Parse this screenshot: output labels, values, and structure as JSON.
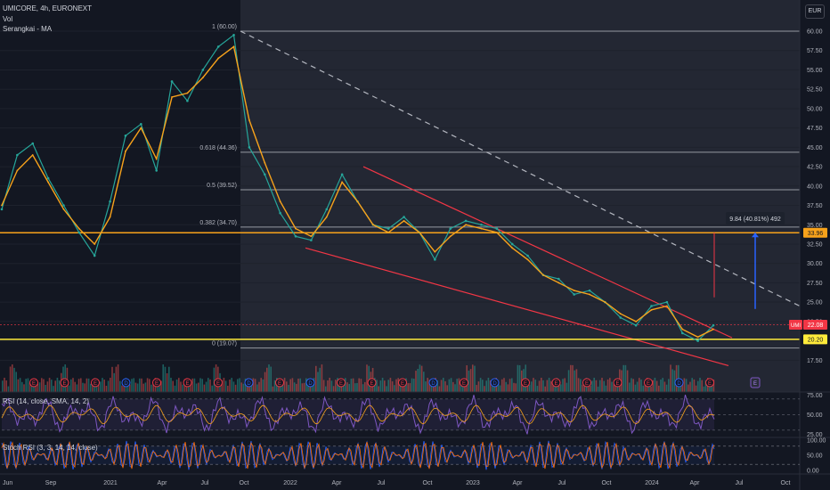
{
  "header": {
    "title": "UMICORE, 4h, EURONEXT",
    "vol_label": "Vol",
    "ma_label": "Serangkai - MA",
    "currency_button": "EUR"
  },
  "price_scale": {
    "ticks": [
      "60.00",
      "57.50",
      "55.00",
      "52.50",
      "50.00",
      "47.50",
      "45.00",
      "42.50",
      "40.00",
      "37.50",
      "35.00",
      "32.50",
      "30.00",
      "27.50",
      "25.00",
      "22.50",
      "20.00",
      "17.50"
    ],
    "labels": [
      {
        "id": "resistance",
        "text": "33.96",
        "color": "#f7a21b"
      },
      {
        "id": "last",
        "symbol": "UMI",
        "text": "22.08",
        "color": "#f23645"
      },
      {
        "id": "support",
        "text": "20.20",
        "color": "#ffeb3b"
      }
    ]
  },
  "rsi_scale": {
    "ticks": [
      "75.00",
      "50.00",
      "25.00"
    ]
  },
  "stoch_scale": {
    "ticks": [
      "100.00",
      "50.00",
      "0.00"
    ]
  },
  "time_axis": {
    "ticks": [
      "Jun",
      "Sep",
      "2021",
      "Apr",
      "Jul",
      "Oct",
      "2022",
      "Apr",
      "Jul",
      "Oct",
      "2023",
      "Apr",
      "Jul",
      "Oct",
      "2024",
      "Apr",
      "Jul",
      "Oct"
    ]
  },
  "fibonacci": [
    {
      "level": "1",
      "price": 60.0,
      "label": "1 (60.00)"
    },
    {
      "level": "0.618",
      "price": 44.36,
      "label": "0.618 (44.36)"
    },
    {
      "level": "0.5",
      "price": 39.52,
      "label": "0.5 (39.52)"
    },
    {
      "level": "0.382",
      "price": 34.7,
      "label": "0.382 (34.70)"
    },
    {
      "level": "0",
      "price": 19.07,
      "label": "0 (19.07)"
    }
  ],
  "measure": {
    "label": "9.84 (40.81%) 492",
    "from": 24.12,
    "to": 33.96
  },
  "levels": {
    "resistance": 33.96,
    "support": 20.2,
    "last": 22.08
  },
  "indicators": {
    "rsi_label": "RSI (14, close, SMA, 14, 2)",
    "stoch_label": "Stoch RSI (3, 3, 14, 14, close)"
  },
  "event_markers": [
    "E",
    "E",
    "E",
    "D",
    "E",
    "E",
    "E",
    "D",
    "E",
    "D",
    "E",
    "E",
    "E",
    "D",
    "E",
    "D",
    "E",
    "E",
    "E",
    "E",
    "E",
    "D",
    "E"
  ],
  "chart_data": {
    "type": "line",
    "title": "UMICORE, 4h, EURONEXT",
    "ylim": [
      17.0,
      62.5
    ],
    "x_ticks": [
      "Jun",
      "Sep",
      "2021",
      "Apr",
      "Jul",
      "Oct",
      "2022",
      "Apr",
      "Jul",
      "Oct",
      "2023",
      "Apr",
      "Jul",
      "Oct",
      "2024",
      "Apr",
      "Jul",
      "Oct"
    ],
    "x": [
      "2020-06",
      "2020-07",
      "2020-08",
      "2020-09",
      "2020-10",
      "2020-11",
      "2020-12",
      "2021-01",
      "2021-02",
      "2021-03",
      "2021-04",
      "2021-05",
      "2021-06",
      "2021-07",
      "2021-08",
      "2021-09",
      "2021-10",
      "2021-11",
      "2021-12",
      "2022-01",
      "2022-02",
      "2022-03",
      "2022-04",
      "2022-05",
      "2022-06",
      "2022-07",
      "2022-08",
      "2022-09",
      "2022-10",
      "2022-11",
      "2022-12",
      "2023-01",
      "2023-02",
      "2023-03",
      "2023-04",
      "2023-05",
      "2023-06",
      "2023-07",
      "2023-08",
      "2023-09",
      "2023-10",
      "2023-11",
      "2023-12",
      "2024-01",
      "2024-02",
      "2024-03",
      "2024-04"
    ],
    "series": [
      {
        "name": "UMICORE",
        "color": "#26a69a",
        "values": [
          37.0,
          44.0,
          45.5,
          41.0,
          37.5,
          34.0,
          31.0,
          38.0,
          46.5,
          48.0,
          42.0,
          53.5,
          51.0,
          55.0,
          58.0,
          59.5,
          45.0,
          41.5,
          36.5,
          33.5,
          33.0,
          37.0,
          41.5,
          38.0,
          35.0,
          34.5,
          36.0,
          34.0,
          30.5,
          34.5,
          35.5,
          35.0,
          34.5,
          32.5,
          31.0,
          28.5,
          28.0,
          26.0,
          26.5,
          25.0,
          23.0,
          22.0,
          24.5,
          25.0,
          21.0,
          20.0,
          22.0
        ]
      },
      {
        "name": "Serangkai - MA",
        "color": "#f7a21b",
        "values": [
          37.5,
          42.0,
          44.0,
          40.5,
          37.0,
          34.5,
          32.5,
          36.0,
          44.5,
          47.5,
          43.5,
          51.5,
          52.0,
          54.0,
          56.5,
          58.0,
          48.5,
          43.0,
          38.0,
          34.5,
          33.5,
          36.0,
          40.5,
          38.0,
          35.0,
          34.0,
          35.5,
          34.0,
          31.5,
          33.5,
          35.0,
          34.5,
          34.0,
          32.0,
          30.5,
          28.5,
          27.5,
          26.5,
          26.0,
          25.0,
          23.5,
          22.5,
          24.0,
          24.5,
          21.5,
          20.5,
          21.5
        ]
      }
    ]
  }
}
